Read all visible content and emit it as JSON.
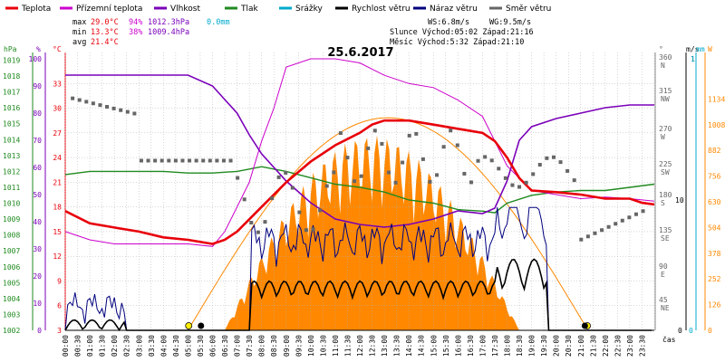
{
  "legend": [
    {
      "label": "Teplota",
      "color": "#e8000a"
    },
    {
      "label": "Přízemní teplota",
      "color": "#cc00cc"
    },
    {
      "label": "Vlhkost",
      "color": "#7a00b8"
    },
    {
      "label": "Tlak",
      "color": "#1f8a1f"
    },
    {
      "label": "Srážky",
      "color": "#00aacc"
    },
    {
      "label": "Rychlost větru",
      "color": "#000000"
    },
    {
      "label": "Náraz větru",
      "color": "#00007f"
    },
    {
      "label": "Směr větru",
      "color": "#666666"
    }
  ],
  "stats": {
    "max_label": "max",
    "max_temp": "29.0°C",
    "max_hum": "94%",
    "max_press": "1012.3hPa",
    "max_rain": "0.0mm",
    "min_label": "min",
    "min_temp": "13.3°C",
    "min_hum": "38%",
    "min_press": "1009.4hPa",
    "avg_label": "avg",
    "avg_temp": "21.4°C",
    "ws": "WS:6.8m/s",
    "wg": "WG:9.5m/s",
    "sun": "Slunce Východ:05:02   Západ:21:16",
    "moon": "Měsíc  Východ:5:32    Západ:21:10"
  },
  "colors": {
    "temp": "#e8000a",
    "ground": "#cc00cc",
    "hum": "#7a00b8",
    "press": "#1f8a1f",
    "rain": "#00aacc",
    "wind": "#000000",
    "gust": "#00007f",
    "dir": "#666666",
    "solar": "#ff8800",
    "grid": "#b0b0b0"
  },
  "chart_data": {
    "type": "line",
    "title": "25.6.2017",
    "xlabel": "čas",
    "x_ticks": [
      "00:00",
      "00:30",
      "01:00",
      "01:30",
      "02:00",
      "02:30",
      "03:00",
      "03:30",
      "04:00",
      "04:30",
      "05:00",
      "05:30",
      "06:00",
      "06:30",
      "07:00",
      "07:30",
      "08:00",
      "08:30",
      "09:00",
      "09:30",
      "10:00",
      "10:30",
      "11:00",
      "11:30",
      "12:00",
      "12:30",
      "13:00",
      "13:30",
      "14:00",
      "14:30",
      "15:00",
      "15:30",
      "16:00",
      "16:30",
      "17:00",
      "17:30",
      "18:00",
      "18:30",
      "19:00",
      "19:30",
      "20:00",
      "20:30",
      "21:00",
      "21:30",
      "22:00",
      "22:30",
      "23:00",
      "23:30"
    ],
    "axes": {
      "hpa": {
        "label": "hPa",
        "ticks": [
          "1002",
          "1003",
          "1004",
          "1005",
          "1006",
          "1007",
          "1008",
          "1009",
          "1010",
          "1011",
          "1012",
          "1013",
          "1014",
          "1015",
          "1016",
          "1017",
          "1018",
          "1019"
        ],
        "range": [
          1002,
          1019.2
        ]
      },
      "pct": {
        "label": "%",
        "ticks": [
          "0",
          "10",
          "20",
          "30",
          "40",
          "50",
          "60",
          "70",
          "80",
          "90",
          "100"
        ],
        "range": [
          0,
          100
        ]
      },
      "celsius": {
        "label": "°C",
        "ticks": [
          "3",
          "6",
          "9",
          "12",
          "15",
          "18",
          "21",
          "24",
          "27",
          "30",
          "33"
        ],
        "range": [
          3,
          36
        ]
      },
      "deg": {
        "label": "°",
        "ticks": [
          "45 NE",
          "90 E",
          "135 SE",
          "180 S",
          "225 SW",
          "270 W",
          "315 NW",
          "360 N"
        ]
      },
      "ms": {
        "label": "m/s",
        "ticks": [
          "0",
          "1",
          "10"
        ]
      },
      "mm": {
        "label": "mm",
        "ticks": [
          "0",
          "1"
        ]
      },
      "w": {
        "label": "W",
        "ticks": [
          "0",
          "126",
          "252",
          "378",
          "504",
          "630",
          "756",
          "882",
          "1008",
          "1134"
        ]
      }
    },
    "series": [
      {
        "name": "Teplota",
        "x": [
          0,
          1,
          2,
          3,
          4,
          5,
          6,
          6.5,
          7,
          8,
          9,
          10,
          11,
          12,
          12.5,
          13,
          14,
          15,
          16,
          17,
          17.5,
          18,
          18.5,
          19,
          20,
          21,
          22,
          23,
          23.5,
          24
        ],
        "y": [
          17.5,
          16,
          15.5,
          15,
          14.3,
          14,
          13.5,
          14,
          15,
          18,
          21,
          23.5,
          25.5,
          27,
          28,
          28.5,
          28.5,
          28,
          27.5,
          27,
          26,
          24,
          21.5,
          20,
          19.8,
          19.5,
          19,
          19,
          18.5,
          18.3
        ]
      },
      {
        "name": "Přízemní teplota",
        "x": [
          0,
          1,
          2,
          3,
          4,
          5,
          6,
          6.5,
          7,
          7.5,
          8,
          8.5,
          9,
          10,
          11,
          12,
          13,
          14,
          15,
          16,
          17,
          17.5,
          18,
          19,
          20,
          21,
          22,
          23,
          24
        ],
        "y": [
          15,
          14,
          13.5,
          13.5,
          13.5,
          13.5,
          13.2,
          15,
          18,
          21,
          26,
          30,
          35,
          36,
          36,
          35.5,
          34,
          33,
          32.5,
          31,
          29,
          26,
          23,
          20,
          19.5,
          19,
          19.2,
          19,
          18.7
        ]
      },
      {
        "name": "Vlhkost",
        "x": [
          0,
          1,
          2,
          3,
          4,
          5,
          6,
          6.5,
          7,
          7.5,
          8,
          9,
          10,
          11,
          12,
          13,
          14,
          15,
          16,
          17,
          17.5,
          18,
          18.5,
          19,
          20,
          21,
          22,
          23,
          24
        ],
        "y": [
          94,
          94,
          94,
          94,
          94,
          94,
          90,
          85,
          80,
          72,
          65,
          55,
          47,
          41,
          39,
          38,
          39,
          41,
          44,
          43,
          45,
          55,
          70,
          75,
          78,
          80,
          82,
          83,
          83
        ]
      },
      {
        "name": "Tlak",
        "x": [
          0,
          1,
          2,
          3,
          4,
          5,
          6,
          7,
          8,
          9,
          10,
          11,
          12,
          13,
          14,
          15,
          16,
          17,
          17.5,
          18,
          19,
          20,
          21,
          22,
          23,
          24
        ],
        "y": [
          1011.8,
          1012,
          1012,
          1012,
          1012,
          1011.9,
          1011.9,
          1012,
          1012.3,
          1012,
          1011.6,
          1011.2,
          1011,
          1010.7,
          1010.2,
          1010,
          1009.6,
          1009.5,
          1009.4,
          1010,
          1010.5,
          1010.7,
          1010.8,
          1010.8,
          1011,
          1011.2
        ]
      },
      {
        "name": "Srážky",
        "values": [
          0
        ]
      }
    ]
  }
}
